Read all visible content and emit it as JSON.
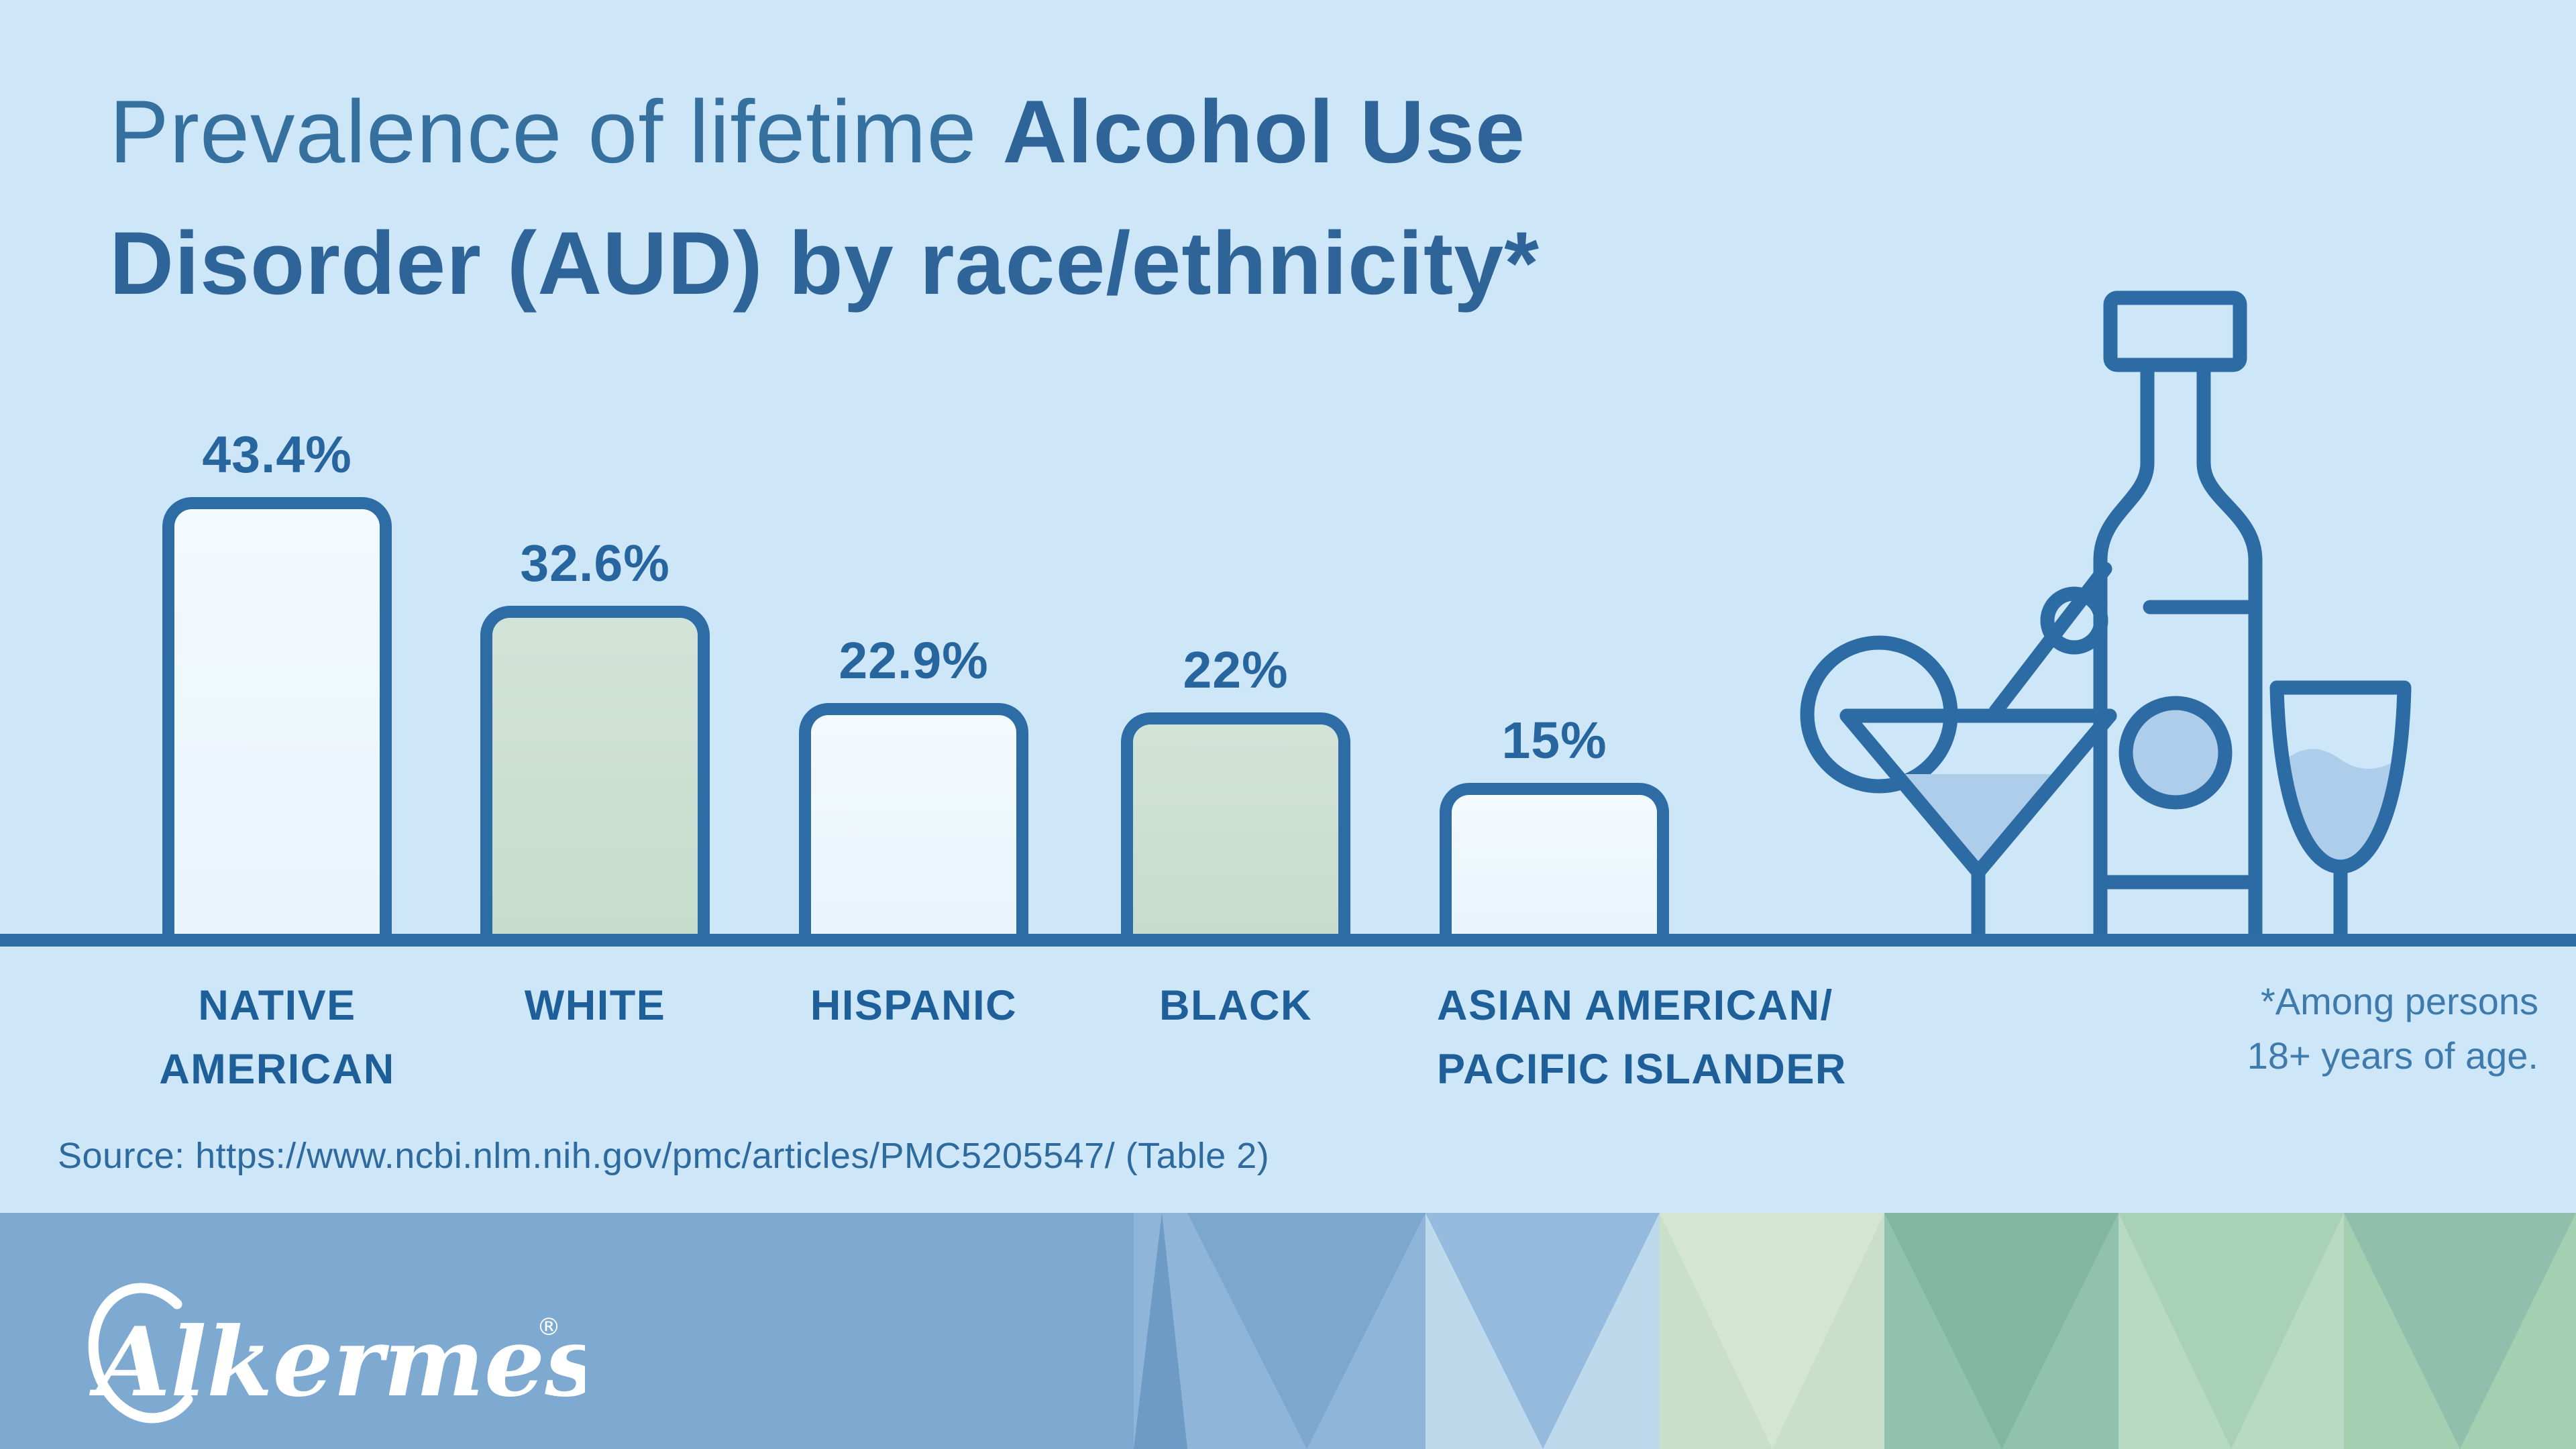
{
  "title": {
    "line1_regular": "Prevalence of lifetime ",
    "line1_bold": "Alcohol Use",
    "line2_bold": "Disorder (AUD) by race/ethnicity*"
  },
  "chart_data": {
    "type": "bar",
    "title": "Prevalence of lifetime Alcohol Use Disorder (AUD) by race/ethnicity*",
    "categories": [
      "NATIVE AMERICAN",
      "WHITE",
      "HISPANIC",
      "BLACK",
      "ASIAN AMERICAN/ PACIFIC ISLANDER"
    ],
    "category_lines": [
      [
        "NATIVE",
        "AMERICAN"
      ],
      [
        "WHITE"
      ],
      [
        "HISPANIC"
      ],
      [
        "BLACK"
      ],
      [
        "ASIAN AMERICAN/",
        "PACIFIC ISLANDER"
      ]
    ],
    "values": [
      43.4,
      32.6,
      22.9,
      22,
      15
    ],
    "value_labels": [
      "43.4%",
      "32.6%",
      "22.9%",
      "22%",
      "15%"
    ],
    "unit": "%",
    "bar_fills": [
      "light",
      "green",
      "light",
      "green",
      "light"
    ],
    "ylim": [
      0,
      45
    ],
    "grid": false,
    "legend": false,
    "data_labels": true,
    "xlabel": "",
    "ylabel": ""
  },
  "footnote": {
    "line1": "*Among persons",
    "line2": "18+ years of age."
  },
  "source": "Source: https://www.ncbi.nlm.nih.gov/pmc/articles/PMC5205547/ (Table 2)",
  "footer": {
    "logo_text": "Alkermes",
    "registered_mark": "®"
  },
  "icons": [
    "bottle-icon",
    "martini-glass-icon",
    "citrus-slice-icon",
    "olive-pick-icon",
    "orange-icon",
    "wine-glass-icon"
  ],
  "colors": {
    "background": "#cee7f8",
    "title_regular": "#36709f",
    "title_bold": "#2e6497",
    "bar_border": "#2e6ca6",
    "bar_fill_light": "#edf6fc",
    "bar_fill_green": "#c9dfd2",
    "value_label": "#27659e",
    "category_label": "#1e5f99",
    "footnote_text": "#3f7aad",
    "source_text": "#2f6a9f",
    "icon_stroke": "#2d6ba5",
    "icon_liquid": "#aecdea",
    "footer_solid_blue": "#7ea9d0",
    "footer_stripe_blues": [
      "#6e9bc5",
      "#8fb5d9",
      "#7ca7ce",
      "#bed8ec",
      "#94bbde"
    ],
    "footer_stripe_greens": [
      "#c9dfca",
      "#d4e6d2",
      "#91c1af",
      "#80b6a2",
      "#b8d9c2",
      "#a8d1b7",
      "#a4cfb1",
      "#90c0ad"
    ]
  }
}
